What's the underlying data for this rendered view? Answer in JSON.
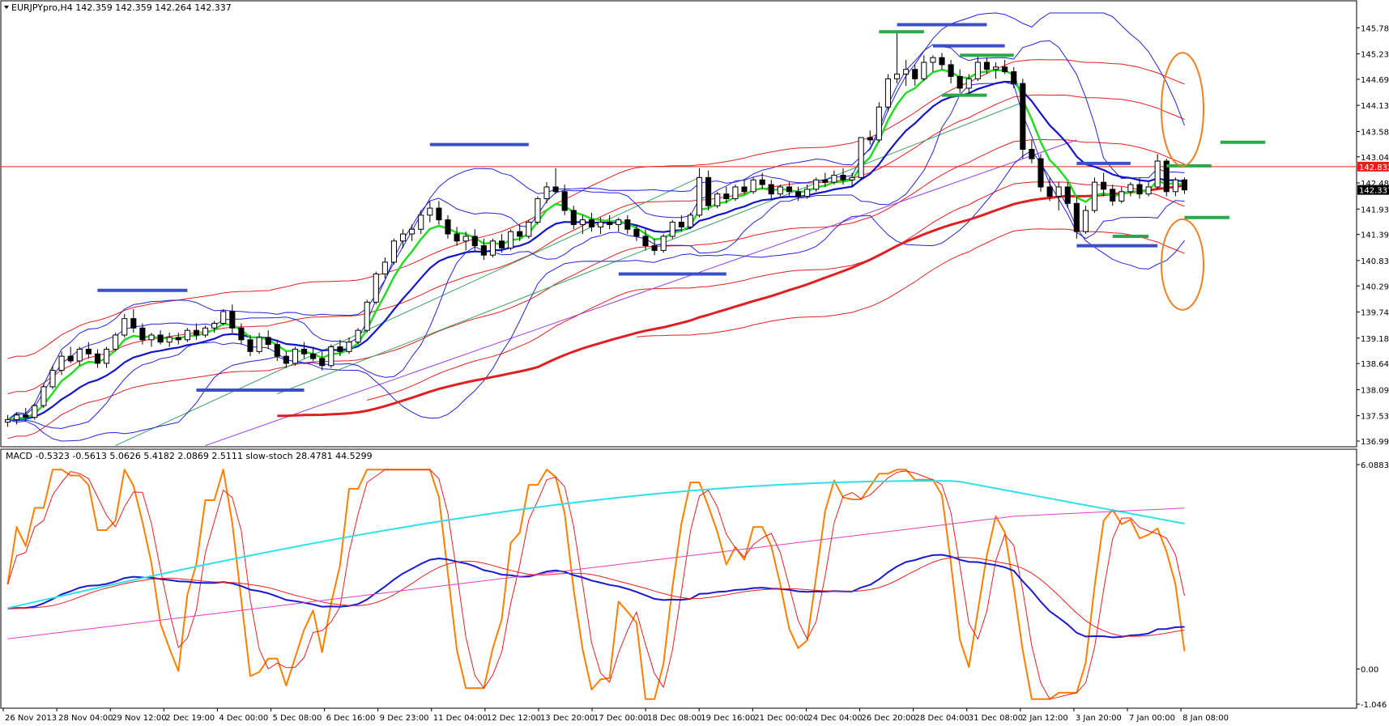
{
  "chart_data": {
    "type": "line",
    "main_pane": {
      "header": "EURJPYpro,H4  142.359 142.359 142.264 142.337",
      "ylim": [
        136.995,
        146.1
      ],
      "y_ticks": [
        "145.785",
        "145.230",
        "144.690",
        "144.135",
        "143.580",
        "143.040",
        "142.485",
        "141.930",
        "141.390",
        "140.835",
        "140.295",
        "139.740",
        "139.185",
        "138.645",
        "138.090",
        "137.535",
        "136.995"
      ],
      "current_price_label": "142.337",
      "current_price": 142.337,
      "horizontal_line_label": "142.832",
      "horizontal_line": 142.832,
      "colors": {
        "frame": "#000000",
        "price_line": "#e8201a",
        "bull_candle": "#ffffff",
        "bear_candle": "#000000",
        "ema_fast": "#22dd22",
        "ema_slow": "#1515c8",
        "bollinger": "#2323d8",
        "envelope": "#e02020",
        "sma_long": "#e02020",
        "trend_purple": "#9b3be0",
        "trend_green": "#3aa060",
        "resistance_marks": "#3b4fc8",
        "support_marks": "#2aa84a",
        "highlight_ellipse": "#f08020"
      }
    },
    "sub_pane": {
      "header": "MACD -0.5323 -0.5613 5.0626 5.4182 2.0869 2.5111  slow-stoch 28.4781 44.5299",
      "y_ticks": [
        "6.0883",
        "0.00",
        "-1.046"
      ],
      "ylim": [
        -1.046,
        6.0883
      ],
      "series": [
        {
          "color": "#ff7f00"
        },
        {
          "color": "#e82020"
        },
        {
          "color": "#1a1acc"
        },
        {
          "color": "#2ee0e8"
        },
        {
          "color": "#e040c0"
        }
      ]
    },
    "x_tick_labels": [
      "26 Nov 2013",
      "28 Nov 04:00",
      "29 Nov 12:00",
      "2 Dec 19:00",
      "4 Dec 00:00",
      "5 Dec 08:00",
      "6 Dec 16:00",
      "9 Dec 23:00",
      "11 Dec 04:00",
      "12 Dec 12:00",
      "13 Dec 20:00",
      "17 Dec 00:00",
      "18 Dec 08:00",
      "19 Dec 16:00",
      "21 Dec 00:00",
      "24 Dec 04:00",
      "26 Dec 20:00",
      "28 Dec 04:00",
      "31 Dec 08:00",
      "2 Jan 12:00",
      "3 Jan 20:00",
      "7 Jan 00:00",
      "8 Jan 08:00"
    ],
    "candles": [
      [
        137.4,
        137.55,
        137.3,
        137.45
      ],
      [
        137.45,
        137.6,
        137.35,
        137.55
      ],
      [
        137.55,
        137.7,
        137.42,
        137.5
      ],
      [
        137.5,
        137.8,
        137.45,
        137.75
      ],
      [
        137.75,
        138.2,
        137.7,
        138.15
      ],
      [
        138.15,
        138.6,
        138.1,
        138.5
      ],
      [
        138.5,
        138.9,
        138.4,
        138.8
      ],
      [
        138.8,
        139.0,
        138.65,
        138.7
      ],
      [
        138.7,
        139.0,
        138.6,
        138.95
      ],
      [
        138.95,
        139.1,
        138.75,
        138.85
      ],
      [
        138.85,
        138.95,
        138.55,
        138.65
      ],
      [
        138.65,
        139.0,
        138.55,
        138.95
      ],
      [
        138.95,
        139.3,
        138.9,
        139.25
      ],
      [
        139.25,
        139.7,
        139.2,
        139.6
      ],
      [
        139.6,
        139.8,
        139.3,
        139.4
      ],
      [
        139.4,
        139.5,
        139.05,
        139.15
      ],
      [
        139.15,
        139.3,
        139.0,
        139.25
      ],
      [
        139.25,
        139.35,
        139.05,
        139.1
      ],
      [
        139.1,
        139.3,
        139.0,
        139.2
      ],
      [
        139.2,
        139.3,
        139.05,
        139.15
      ],
      [
        139.15,
        139.4,
        139.1,
        139.35
      ],
      [
        139.35,
        139.5,
        139.15,
        139.25
      ],
      [
        139.25,
        139.45,
        139.2,
        139.4
      ],
      [
        139.4,
        139.55,
        139.3,
        139.5
      ],
      [
        139.5,
        139.8,
        139.45,
        139.75
      ],
      [
        139.75,
        139.9,
        139.3,
        139.4
      ],
      [
        139.4,
        139.5,
        139.05,
        139.15
      ],
      [
        139.15,
        139.25,
        138.8,
        138.9
      ],
      [
        138.9,
        139.3,
        138.85,
        139.2
      ],
      [
        139.2,
        139.35,
        138.95,
        139.05
      ],
      [
        139.05,
        139.15,
        138.7,
        138.8
      ],
      [
        138.8,
        138.9,
        138.55,
        138.65
      ],
      [
        138.65,
        139.0,
        138.6,
        138.95
      ],
      [
        138.95,
        139.1,
        138.75,
        138.85
      ],
      [
        138.85,
        139.0,
        138.7,
        138.75
      ],
      [
        138.75,
        138.9,
        138.5,
        138.6
      ],
      [
        138.6,
        139.05,
        138.55,
        139.0
      ],
      [
        139.0,
        139.15,
        138.8,
        138.9
      ],
      [
        138.9,
        139.2,
        138.85,
        139.1
      ],
      [
        139.1,
        139.4,
        139.05,
        139.35
      ],
      [
        139.35,
        140.0,
        139.3,
        139.95
      ],
      [
        139.95,
        140.6,
        139.9,
        140.55
      ],
      [
        140.55,
        140.9,
        140.45,
        140.8
      ],
      [
        140.8,
        141.3,
        140.75,
        141.25
      ],
      [
        141.25,
        141.5,
        141.1,
        141.4
      ],
      [
        141.4,
        141.6,
        141.25,
        141.5
      ],
      [
        141.5,
        141.9,
        141.4,
        141.8
      ],
      [
        141.8,
        142.1,
        141.65,
        141.95
      ],
      [
        141.95,
        142.1,
        141.6,
        141.7
      ],
      [
        141.7,
        141.8,
        141.3,
        141.4
      ],
      [
        141.4,
        141.55,
        141.15,
        141.25
      ],
      [
        141.25,
        141.45,
        141.05,
        141.35
      ],
      [
        141.35,
        141.5,
        141.05,
        141.15
      ],
      [
        141.15,
        141.3,
        140.85,
        140.95
      ],
      [
        140.95,
        141.3,
        140.9,
        141.25
      ],
      [
        141.25,
        141.4,
        141.0,
        141.1
      ],
      [
        141.1,
        141.5,
        141.05,
        141.45
      ],
      [
        141.45,
        141.6,
        141.25,
        141.35
      ],
      [
        141.35,
        141.7,
        141.3,
        141.65
      ],
      [
        141.65,
        142.2,
        141.6,
        142.15
      ],
      [
        142.15,
        142.5,
        142.05,
        142.4
      ],
      [
        142.4,
        142.8,
        142.25,
        142.3
      ],
      [
        142.3,
        142.45,
        141.8,
        141.9
      ],
      [
        141.9,
        142.0,
        141.5,
        141.6
      ],
      [
        141.6,
        141.8,
        141.4,
        141.7
      ],
      [
        141.7,
        141.85,
        141.45,
        141.55
      ],
      [
        141.55,
        141.75,
        141.4,
        141.65
      ],
      [
        141.65,
        141.8,
        141.5,
        141.6
      ],
      [
        141.6,
        141.75,
        141.45,
        141.7
      ],
      [
        141.7,
        141.8,
        141.4,
        141.5
      ],
      [
        141.5,
        141.6,
        141.25,
        141.35
      ],
      [
        141.35,
        141.5,
        141.05,
        141.15
      ],
      [
        141.15,
        141.3,
        140.95,
        141.05
      ],
      [
        141.05,
        141.4,
        141.0,
        141.35
      ],
      [
        141.35,
        141.7,
        141.3,
        141.65
      ],
      [
        141.65,
        141.8,
        141.45,
        141.55
      ],
      [
        141.55,
        141.85,
        141.5,
        141.8
      ],
      [
        141.8,
        142.8,
        141.75,
        142.6
      ],
      [
        142.6,
        142.75,
        141.9,
        142.0
      ],
      [
        142.0,
        142.3,
        141.95,
        142.25
      ],
      [
        142.25,
        142.4,
        142.05,
        142.15
      ],
      [
        142.15,
        142.45,
        142.1,
        142.4
      ],
      [
        142.4,
        142.55,
        142.25,
        142.3
      ],
      [
        142.3,
        142.6,
        142.25,
        142.55
      ],
      [
        142.55,
        142.7,
        142.35,
        142.45
      ],
      [
        142.45,
        142.55,
        142.15,
        142.25
      ],
      [
        142.25,
        142.45,
        142.2,
        142.4
      ],
      [
        142.4,
        142.5,
        142.2,
        142.3
      ],
      [
        142.3,
        142.4,
        142.1,
        142.2
      ],
      [
        142.2,
        142.45,
        142.15,
        142.35
      ],
      [
        142.35,
        142.6,
        142.3,
        142.55
      ],
      [
        142.55,
        142.7,
        142.4,
        142.5
      ],
      [
        142.5,
        142.75,
        142.45,
        142.65
      ],
      [
        142.65,
        142.8,
        142.45,
        142.55
      ],
      [
        142.55,
        142.7,
        142.4,
        142.6
      ],
      [
        142.6,
        143.45,
        142.55,
        143.45
      ],
      [
        143.45,
        143.6,
        143.3,
        143.4
      ],
      [
        143.4,
        144.2,
        143.35,
        144.1
      ],
      [
        144.1,
        144.8,
        144.0,
        144.7
      ],
      [
        144.7,
        145.7,
        144.6,
        144.8
      ],
      [
        144.8,
        145.1,
        144.55,
        144.9
      ],
      [
        144.9,
        145.0,
        144.55,
        144.7
      ],
      [
        144.7,
        145.2,
        144.65,
        145.05
      ],
      [
        145.05,
        145.2,
        144.85,
        145.15
      ],
      [
        145.15,
        145.25,
        144.9,
        145.0
      ],
      [
        145.0,
        145.1,
        144.6,
        144.75
      ],
      [
        144.75,
        144.9,
        144.4,
        144.5
      ],
      [
        144.5,
        144.8,
        144.4,
        144.7
      ],
      [
        144.7,
        145.2,
        144.65,
        145.05
      ],
      [
        145.05,
        145.15,
        144.8,
        144.9
      ],
      [
        144.9,
        145.05,
        144.7,
        144.95
      ],
      [
        144.95,
        145.1,
        144.8,
        144.85
      ],
      [
        144.85,
        144.95,
        144.5,
        144.6
      ],
      [
        144.6,
        144.7,
        143.0,
        143.2
      ],
      [
        143.2,
        143.4,
        142.9,
        143.0
      ],
      [
        143.0,
        143.1,
        142.3,
        142.4
      ],
      [
        142.4,
        142.6,
        142.1,
        142.2
      ],
      [
        142.2,
        142.5,
        141.9,
        142.4
      ],
      [
        142.4,
        142.5,
        141.95,
        142.05
      ],
      [
        142.05,
        142.2,
        141.3,
        141.45
      ],
      [
        141.45,
        142.0,
        141.4,
        141.9
      ],
      [
        141.9,
        142.6,
        141.85,
        142.5
      ],
      [
        142.5,
        142.7,
        142.2,
        142.35
      ],
      [
        142.35,
        142.45,
        142.0,
        142.1
      ],
      [
        142.1,
        142.4,
        142.05,
        142.3
      ],
      [
        142.3,
        142.5,
        142.2,
        142.45
      ],
      [
        142.45,
        142.6,
        142.15,
        142.25
      ],
      [
        142.25,
        142.5,
        142.2,
        142.4
      ],
      [
        142.4,
        143.1,
        142.35,
        142.95
      ],
      [
        142.95,
        143.0,
        142.2,
        142.3
      ],
      [
        142.3,
        142.6,
        142.2,
        142.55
      ],
      [
        142.55,
        142.6,
        142.25,
        142.337
      ]
    ]
  }
}
